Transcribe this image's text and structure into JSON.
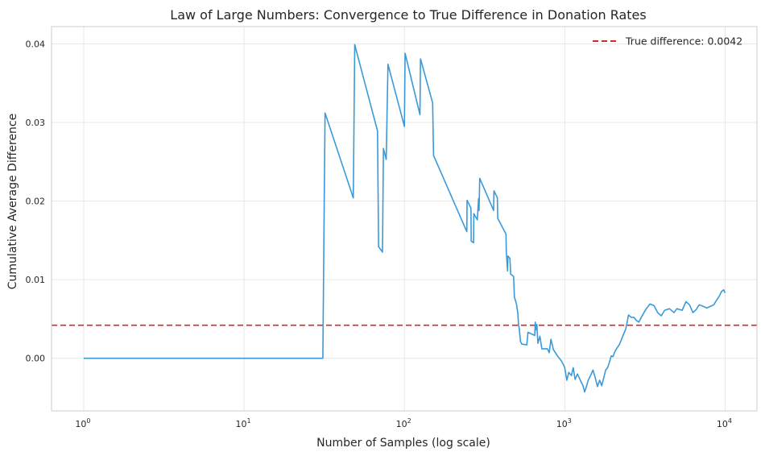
{
  "chart_data": {
    "type": "line",
    "title": "Law of Large Numbers: Convergence to True Difference in Donation Rates",
    "xlabel": "Number of Samples (log scale)",
    "ylabel": "Cumulative Average Difference",
    "xscale": "log",
    "xlim": [
      0.63,
      15800
    ],
    "ylim": [
      -0.0067,
      0.0422
    ],
    "x_ticks": [
      1,
      10,
      100,
      1000,
      10000
    ],
    "x_tick_labels": [
      {
        "base": "10",
        "exp": "0"
      },
      {
        "base": "10",
        "exp": "1"
      },
      {
        "base": "10",
        "exp": "2"
      },
      {
        "base": "10",
        "exp": "3"
      },
      {
        "base": "10",
        "exp": "4"
      }
    ],
    "y_ticks": [
      0.0,
      0.01,
      0.02,
      0.03,
      0.04
    ],
    "y_tick_labels": [
      "0.00",
      "0.01",
      "0.02",
      "0.03",
      "0.04"
    ],
    "grid": true,
    "legend_position": "top-right",
    "reference_line": {
      "label": "True difference: 0.0042",
      "y": 0.0042,
      "color": "#d62728",
      "style": "dashed"
    },
    "series": [
      {
        "color": "#3a9ad9",
        "points": [
          [
            1,
            0.0
          ],
          [
            31,
            0.0
          ],
          [
            31.5,
            0.016
          ],
          [
            32,
            0.0312
          ],
          [
            48,
            0.0204
          ],
          [
            49,
            0.0399
          ],
          [
            68,
            0.0289
          ],
          [
            69,
            0.0142
          ],
          [
            73,
            0.0135
          ],
          [
            74,
            0.0267
          ],
          [
            77,
            0.0253
          ],
          [
            79,
            0.0374
          ],
          [
            100,
            0.0295
          ],
          [
            101,
            0.0388
          ],
          [
            125,
            0.031
          ],
          [
            126,
            0.0381
          ],
          [
            150,
            0.0325
          ],
          [
            152,
            0.0258
          ],
          [
            245,
            0.0161
          ],
          [
            246,
            0.0201
          ],
          [
            260,
            0.0191
          ],
          [
            261,
            0.0149
          ],
          [
            270,
            0.0147
          ],
          [
            271,
            0.0184
          ],
          [
            285,
            0.0176
          ],
          [
            290,
            0.0203
          ],
          [
            292,
            0.0188
          ],
          [
            295,
            0.0229
          ],
          [
            360,
            0.0188
          ],
          [
            362,
            0.0213
          ],
          [
            380,
            0.0204
          ],
          [
            382,
            0.0178
          ],
          [
            430,
            0.0158
          ],
          [
            432,
            0.0136
          ],
          [
            440,
            0.0111
          ],
          [
            442,
            0.013
          ],
          [
            455,
            0.0127
          ],
          [
            460,
            0.0107
          ],
          [
            480,
            0.0104
          ],
          [
            485,
            0.0078
          ],
          [
            500,
            0.0069
          ],
          [
            510,
            0.0057
          ],
          [
            515,
            0.0042
          ],
          [
            520,
            0.0038
          ],
          [
            530,
            0.0021
          ],
          [
            540,
            0.0018
          ],
          [
            580,
            0.0017
          ],
          [
            590,
            0.0033
          ],
          [
            650,
            0.0029
          ],
          [
            655,
            0.0046
          ],
          [
            660,
            0.0036
          ],
          [
            670,
            0.0043
          ],
          [
            680,
            0.0019
          ],
          [
            700,
            0.0028
          ],
          [
            720,
            0.0012
          ],
          [
            780,
            0.0012
          ],
          [
            800,
            0.0007
          ],
          [
            820,
            0.0024
          ],
          [
            850,
            0.0011
          ],
          [
            900,
            0.0003
          ],
          [
            950,
            -0.0003
          ],
          [
            980,
            -0.0008
          ],
          [
            1000,
            -0.0012
          ],
          [
            1030,
            -0.0028
          ],
          [
            1060,
            -0.0018
          ],
          [
            1100,
            -0.0022
          ],
          [
            1130,
            -0.0012
          ],
          [
            1160,
            -0.0027
          ],
          [
            1200,
            -0.002
          ],
          [
            1250,
            -0.0028
          ],
          [
            1300,
            -0.0035
          ],
          [
            1330,
            -0.0043
          ],
          [
            1370,
            -0.0035
          ],
          [
            1400,
            -0.0028
          ],
          [
            1450,
            -0.0022
          ],
          [
            1500,
            -0.0015
          ],
          [
            1550,
            -0.0025
          ],
          [
            1600,
            -0.0036
          ],
          [
            1650,
            -0.0028
          ],
          [
            1700,
            -0.0035
          ],
          [
            1750,
            -0.0025
          ],
          [
            1800,
            -0.0015
          ],
          [
            1850,
            -0.0012
          ],
          [
            1900,
            -0.0005
          ],
          [
            1950,
            0.0003
          ],
          [
            2000,
            0.0002
          ],
          [
            2050,
            0.0008
          ],
          [
            2100,
            0.0012
          ],
          [
            2200,
            0.0018
          ],
          [
            2300,
            0.0028
          ],
          [
            2400,
            0.0037
          ],
          [
            2500,
            0.0055
          ],
          [
            2600,
            0.0052
          ],
          [
            2700,
            0.0052
          ],
          [
            2800,
            0.0048
          ],
          [
            2900,
            0.0046
          ],
          [
            3000,
            0.0052
          ],
          [
            3200,
            0.0062
          ],
          [
            3400,
            0.0069
          ],
          [
            3600,
            0.0067
          ],
          [
            3800,
            0.0058
          ],
          [
            4000,
            0.0054
          ],
          [
            4200,
            0.0061
          ],
          [
            4500,
            0.0063
          ],
          [
            4800,
            0.0058
          ],
          [
            5000,
            0.0063
          ],
          [
            5400,
            0.0061
          ],
          [
            5700,
            0.0072
          ],
          [
            6000,
            0.0068
          ],
          [
            6300,
            0.0058
          ],
          [
            6600,
            0.0062
          ],
          [
            6900,
            0.0068
          ],
          [
            7300,
            0.0066
          ],
          [
            7700,
            0.0064
          ],
          [
            8100,
            0.0066
          ],
          [
            8500,
            0.0068
          ],
          [
            8800,
            0.0073
          ],
          [
            9200,
            0.0079
          ],
          [
            9500,
            0.0085
          ],
          [
            9800,
            0.0087
          ],
          [
            10000,
            0.0083
          ]
        ]
      }
    ]
  }
}
